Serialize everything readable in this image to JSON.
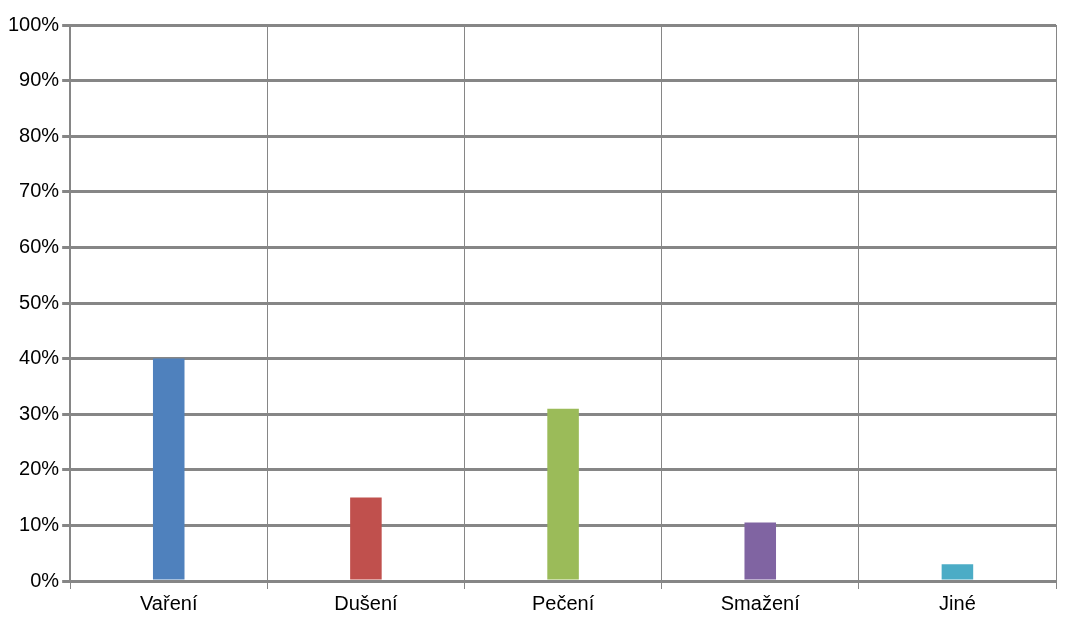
{
  "chart_data": {
    "type": "bar",
    "categories": [
      "Vaření",
      "Dušení",
      "Pečení",
      "Smažení",
      "Jiné"
    ],
    "values": [
      40,
      15,
      31,
      10.5,
      3
    ],
    "colors": [
      "#4f81bd",
      "#c0504d",
      "#9bbb59",
      "#8064a2",
      "#4bacc6"
    ],
    "ylim": [
      0,
      100
    ],
    "yticks": [
      {
        "value": 0,
        "label": "0%"
      },
      {
        "value": 10,
        "label": "10%"
      },
      {
        "value": 20,
        "label": "20%"
      },
      {
        "value": 30,
        "label": "30%"
      },
      {
        "value": 40,
        "label": "40%"
      },
      {
        "value": 50,
        "label": "50%"
      },
      {
        "value": 60,
        "label": "60%"
      },
      {
        "value": 70,
        "label": "70%"
      },
      {
        "value": 80,
        "label": "80%"
      },
      {
        "value": 90,
        "label": "90%"
      },
      {
        "value": 100,
        "label": "100%"
      }
    ],
    "grid": true,
    "legend": false
  }
}
